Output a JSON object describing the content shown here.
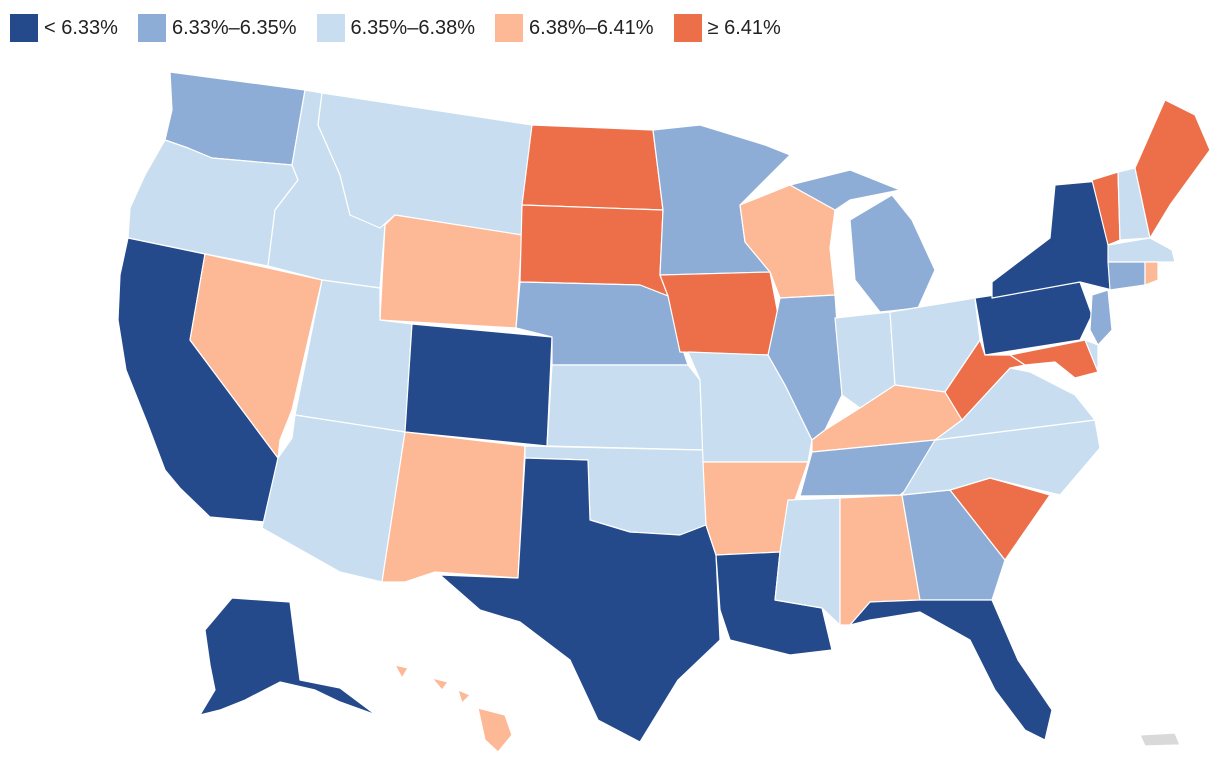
{
  "colors": {
    "c1": "#244a8c",
    "c2": "#8eadd6",
    "c3": "#c8ddef",
    "c4": "#fdb896",
    "c5": "#ec6f4a",
    "na": "#d9d9d9"
  },
  "legend": [
    {
      "label": "< 6.33%",
      "color": "#244a8c"
    },
    {
      "label": "6.33%–6.35%",
      "color": "#8eadd6"
    },
    {
      "label": "6.35%–6.38%",
      "color": "#c8ddef"
    },
    {
      "label": "6.38%–6.41%",
      "color": "#fdb896"
    },
    {
      "label": "≥ 6.41%",
      "color": "#ec6f4a"
    }
  ],
  "states": {
    "WA": "c2",
    "OR": "c3",
    "CA": "c1",
    "NV": "c4",
    "ID": "c3",
    "MT": "c3",
    "WY": "c4",
    "UT": "c3",
    "AZ": "c3",
    "CO": "c1",
    "NM": "c4",
    "ND": "c5",
    "SD": "c5",
    "NE": "c2",
    "KS": "c3",
    "OK": "c3",
    "TX": "c1",
    "MN": "c2",
    "IA": "c5",
    "MO": "c3",
    "AR": "c4",
    "LA": "c1",
    "WI": "c4",
    "IL": "c2",
    "MI": "c2",
    "IN": "c3",
    "OH": "c3",
    "KY": "c4",
    "TN": "c2",
    "MS": "c3",
    "AL": "c4",
    "GA": "c2",
    "FL": "c1",
    "SC": "c5",
    "NC": "c3",
    "VA": "c3",
    "WV": "c5",
    "PA": "c1",
    "NY": "c1",
    "VT": "c5",
    "NH": "c3",
    "ME": "c5",
    "MA": "c3",
    "CT": "c2",
    "RI": "c4",
    "NJ": "c2",
    "DE": "c3",
    "MD": "c5",
    "AK": "c1",
    "HI": "c4",
    "PR": "na"
  }
}
